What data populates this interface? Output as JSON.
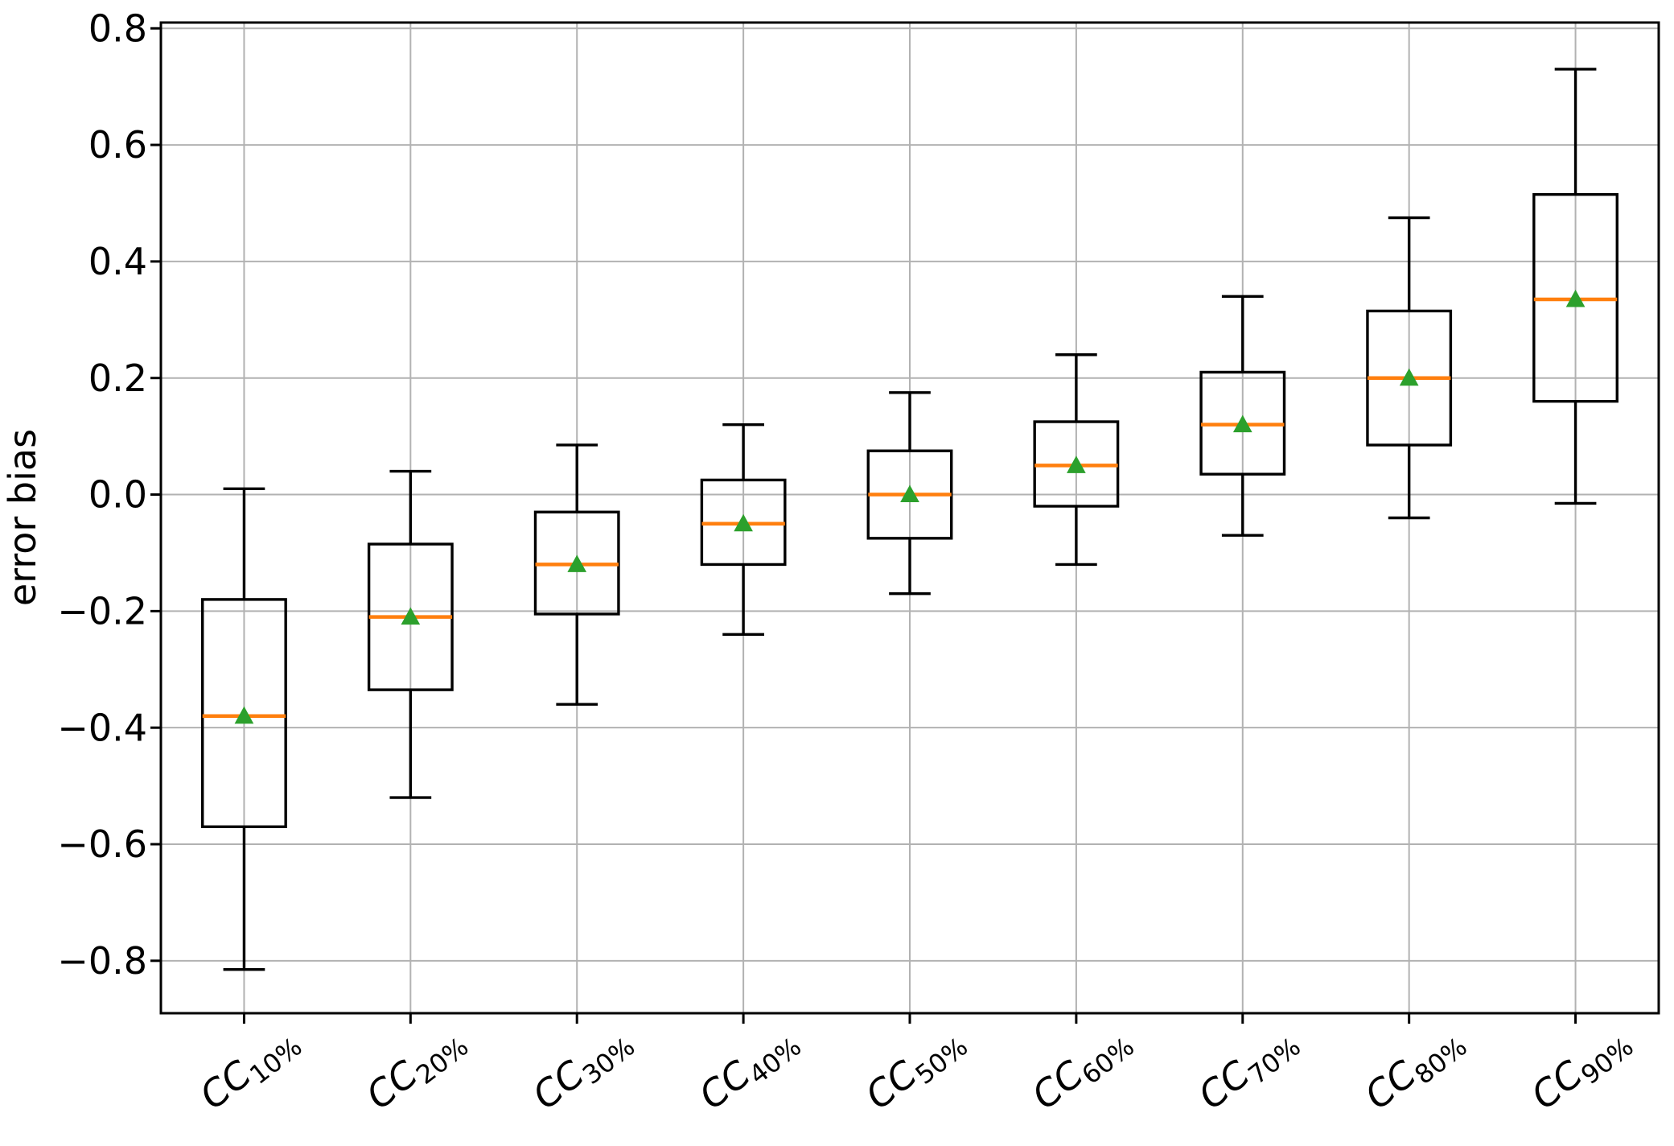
{
  "chart_data": {
    "type": "boxplot",
    "title": "",
    "xlabel": "",
    "ylabel": "error bias",
    "ylim": [
      -0.89,
      0.81
    ],
    "yticks": [
      0.8,
      0.6,
      0.4,
      0.2,
      0.0,
      -0.2,
      -0.4,
      -0.6,
      -0.8
    ],
    "ytick_labels": [
      "0.8",
      "0.6",
      "0.4",
      "0.2",
      "0.0",
      "−0.2",
      "−0.4",
      "−0.6",
      "−0.8"
    ],
    "grid": true,
    "legend": null,
    "categories": [
      {
        "label": "CC10%",
        "base": "CC",
        "sub": "10%"
      },
      {
        "label": "CC20%",
        "base": "CC",
        "sub": "20%"
      },
      {
        "label": "CC30%",
        "base": "CC",
        "sub": "30%"
      },
      {
        "label": "CC40%",
        "base": "CC",
        "sub": "40%"
      },
      {
        "label": "CC50%",
        "base": "CC",
        "sub": "50%"
      },
      {
        "label": "CC60%",
        "base": "CC",
        "sub": "60%"
      },
      {
        "label": "CC70%",
        "base": "CC",
        "sub": "70%"
      },
      {
        "label": "CC80%",
        "base": "CC",
        "sub": "80%"
      },
      {
        "label": "CC90%",
        "base": "CC",
        "sub": "90%"
      }
    ],
    "boxes": [
      {
        "label": "CC10%",
        "whisker_low": -0.815,
        "q1": -0.57,
        "median": -0.38,
        "q3": -0.18,
        "whisker_high": 0.01,
        "mean": -0.38
      },
      {
        "label": "CC20%",
        "whisker_low": -0.52,
        "q1": -0.335,
        "median": -0.21,
        "q3": -0.085,
        "whisker_high": 0.04,
        "mean": -0.21
      },
      {
        "label": "CC30%",
        "whisker_low": -0.36,
        "q1": -0.205,
        "median": -0.12,
        "q3": -0.03,
        "whisker_high": 0.085,
        "mean": -0.12
      },
      {
        "label": "CC40%",
        "whisker_low": -0.24,
        "q1": -0.12,
        "median": -0.05,
        "q3": 0.025,
        "whisker_high": 0.12,
        "mean": -0.05
      },
      {
        "label": "CC50%",
        "whisker_low": -0.17,
        "q1": -0.075,
        "median": 0.0,
        "q3": 0.075,
        "whisker_high": 0.175,
        "mean": 0.0
      },
      {
        "label": "CC60%",
        "whisker_low": -0.12,
        "q1": -0.02,
        "median": 0.05,
        "q3": 0.125,
        "whisker_high": 0.24,
        "mean": 0.05
      },
      {
        "label": "CC70%",
        "whisker_low": -0.07,
        "q1": 0.035,
        "median": 0.12,
        "q3": 0.21,
        "whisker_high": 0.34,
        "mean": 0.12
      },
      {
        "label": "CC80%",
        "whisker_low": -0.04,
        "q1": 0.085,
        "median": 0.2,
        "q3": 0.315,
        "whisker_high": 0.475,
        "mean": 0.2
      },
      {
        "label": "CC90%",
        "whisker_low": -0.015,
        "q1": 0.16,
        "median": 0.335,
        "q3": 0.515,
        "whisker_high": 0.73,
        "mean": 0.335
      }
    ],
    "colors": {
      "box": "#000000",
      "whisker": "#000000",
      "median": "#ff7f0e",
      "mean_marker": "#2ca02c",
      "grid": "#b2b2b2",
      "axis": "#000000",
      "background": "#ffffff"
    }
  }
}
